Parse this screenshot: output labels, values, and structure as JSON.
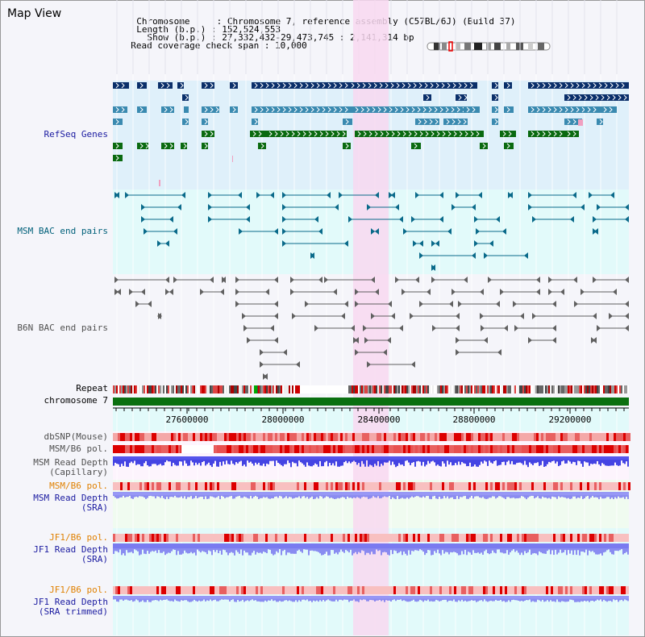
{
  "title": "Map View",
  "info": {
    "chromosome_key": "Chromosome     :",
    "chromosome_val": "Chromosome 7, reference assembly (C57BL/6J) (Build 37)",
    "length_key": "Length (b.p.) :",
    "length_val": "152,524,553",
    "show_key": "  Show (b.p.) :",
    "show_val": "27,332,432-29,473,745 : 2,141,314 bp",
    "coverage_key": "Read coverage check span :",
    "coverage_val": "10,000"
  },
  "tracks": {
    "refseq": {
      "label": "RefSeq Genes",
      "color": "#1a1aa0"
    },
    "msm_bac": {
      "label": "MSM BAC end pairs",
      "color": "#00607a"
    },
    "b6n_bac": {
      "label": "B6N BAC end pairs",
      "color": "#505050"
    },
    "repeat": {
      "label": "Repeat",
      "color": "#000000"
    },
    "chromosome": {
      "label": "chromosome 7",
      "color": "#000000"
    },
    "dbsnp": {
      "label": "dbSNP(Mouse)",
      "color": "#505050"
    },
    "msm_b6_pol_cap": {
      "label": "MSM/B6 pol.",
      "color": "#505050"
    },
    "msm_depth_cap": {
      "line1": "MSM Read Depth",
      "line2": "(Capillary)",
      "color": "#505050"
    },
    "msm_b6_pol_sra": {
      "label": "MSM/B6 pol.",
      "color": "#e08000"
    },
    "msm_depth_sra": {
      "line1": "MSM Read Depth",
      "line2": "(SRA)",
      "color": "#1a1aa0"
    },
    "jf1_b6_pol": {
      "label": "JF1/B6 pol.",
      "color": "#e08000"
    },
    "jf1_depth_sra": {
      "line1": "JF1 Read Depth",
      "line2": "(SRA)",
      "color": "#1a1aa0"
    },
    "jf1_b6_pol_trim": {
      "label": "JF1/B6 pol.",
      "color": "#e08000"
    },
    "jf1_depth_trim": {
      "line1": "JF1 Read Depth",
      "line2": "(SRA trimmed)",
      "color": "#1a1aa0"
    }
  },
  "axis": {
    "ticks": [
      "27600000",
      "28000000",
      "28400000",
      "28800000",
      "29200000"
    ]
  },
  "colors": {
    "highlight": "#f8d8f0",
    "refseq_dark": "#0a2f6a",
    "refseq_mid": "#3a8ab0",
    "refseq_green": "#0a6a10",
    "msm_teal": "#0a6a8a",
    "b6n_gray": "#606060",
    "chrom_green": "#0a7010",
    "depth_blue": "#3030e0",
    "depth_light": "#8080f0",
    "pol_red": "#e04040"
  }
}
